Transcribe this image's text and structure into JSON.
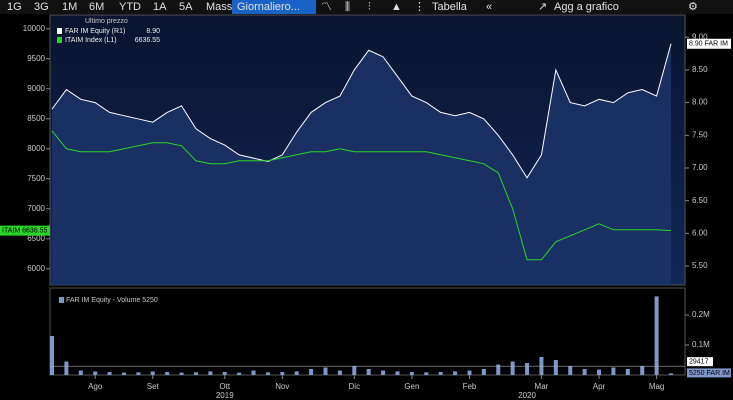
{
  "toolbar": {
    "buttons": [
      "1G",
      "3G",
      "1M",
      "6M",
      "YTD",
      "1A",
      "5A",
      "Mass"
    ],
    "period": "Giornaliero...",
    "table": "Tabella",
    "add": "Agg a grafico"
  },
  "chart_data": [
    {
      "type": "line",
      "legend_title": "Ultimo prezzo",
      "categories": [
        null,
        null,
        null,
        "Ago",
        null,
        null,
        null,
        "Set",
        null,
        null,
        null,
        null,
        "Ott",
        null,
        null,
        null,
        "Nov",
        null,
        null,
        null,
        null,
        "Dic",
        null,
        null,
        null,
        "Gen",
        null,
        null,
        null,
        "Feb",
        null,
        null,
        null,
        null,
        "Mar",
        null,
        null,
        null,
        "Apr",
        null,
        null,
        null,
        "Mag",
        null
      ],
      "year_categories": [
        null,
        null,
        null,
        null,
        null,
        null,
        null,
        null,
        null,
        null,
        null,
        null,
        "2019",
        null,
        null,
        null,
        null,
        null,
        null,
        null,
        null,
        null,
        null,
        null,
        null,
        null,
        null,
        null,
        null,
        null,
        null,
        null,
        null,
        "2020",
        null,
        null,
        null,
        null,
        null,
        null,
        null,
        null,
        null,
        null
      ],
      "ylim": [
        5730,
        10230
      ],
      "yticks": [
        6000,
        6500,
        7000,
        7500,
        8000,
        8500,
        9000,
        9500,
        10000
      ],
      "y2lim": [
        5.21,
        9.34
      ],
      "y2ticks": [
        {
          "value": 5.5,
          "label": "5.50"
        },
        {
          "value": 6,
          "label": "6.00"
        },
        {
          "value": 6.5,
          "label": "6.50"
        },
        {
          "value": 7,
          "label": "7.00"
        },
        {
          "value": 7.5,
          "label": "7.50"
        },
        {
          "value": 8,
          "label": "8.00"
        },
        {
          "value": 8.5,
          "label": "8.50"
        },
        {
          "value": 9,
          "label": "9.00"
        }
      ],
      "series": [
        {
          "name": "FAR IM Equity (R1)",
          "legend_value": "8.90",
          "axis_tag": "8.90 FAR IM",
          "color": "#ffffff",
          "fill": "#1c3468",
          "axis": "y2",
          "values": [
            7.9,
            8.2,
            8.05,
            8.0,
            7.85,
            7.8,
            7.75,
            7.7,
            7.85,
            7.95,
            7.6,
            7.45,
            7.35,
            7.2,
            7.15,
            7.1,
            7.2,
            7.55,
            7.85,
            8.0,
            8.1,
            8.5,
            8.8,
            8.7,
            8.4,
            8.1,
            8.0,
            7.85,
            7.8,
            7.85,
            7.75,
            7.5,
            7.2,
            6.85,
            7.2,
            8.5,
            8.0,
            7.95,
            8.05,
            8.0,
            8.15,
            8.2,
            8.1,
            8.9
          ]
        },
        {
          "name": "ITAIM Index (L1)",
          "legend_value": "6636.55",
          "axis_tag": "ITAIM 6636.55",
          "color": "#2ad42a",
          "values": [
            8300,
            8000,
            7950,
            7950,
            7950,
            8000,
            8050,
            8100,
            8100,
            8050,
            7800,
            7750,
            7750,
            7800,
            7800,
            7800,
            7850,
            7900,
            7950,
            7950,
            8000,
            7950,
            7950,
            7950,
            7950,
            7950,
            7950,
            7900,
            7850,
            7800,
            7750,
            7600,
            7000,
            6150,
            6150,
            6450,
            6550,
            6650,
            6750,
            6650,
            6650,
            6650,
            6650,
            6636.55
          ]
        }
      ]
    },
    {
      "type": "bar",
      "legend": "FAR IM Equity - Volume 5250",
      "axis_tag": "5250 FAR IM",
      "average": 29417,
      "color": "#8097cc",
      "ylim": [
        0,
        290000
      ],
      "yticks": [
        {
          "value": 100000,
          "label": "0.1M"
        },
        {
          "value": 200000,
          "label": "0.2M"
        }
      ],
      "values": [
        130000,
        45000,
        15000,
        12000,
        10000,
        8000,
        9000,
        12000,
        10000,
        8000,
        9000,
        12000,
        10000,
        8000,
        15000,
        9000,
        10000,
        12000,
        20000,
        25000,
        15000,
        30000,
        20000,
        15000,
        12000,
        10000,
        9000,
        10000,
        12000,
        15000,
        20000,
        35000,
        45000,
        40000,
        60000,
        50000,
        30000,
        20000,
        18000,
        25000,
        20000,
        30000,
        262000,
        5250
      ]
    }
  ]
}
